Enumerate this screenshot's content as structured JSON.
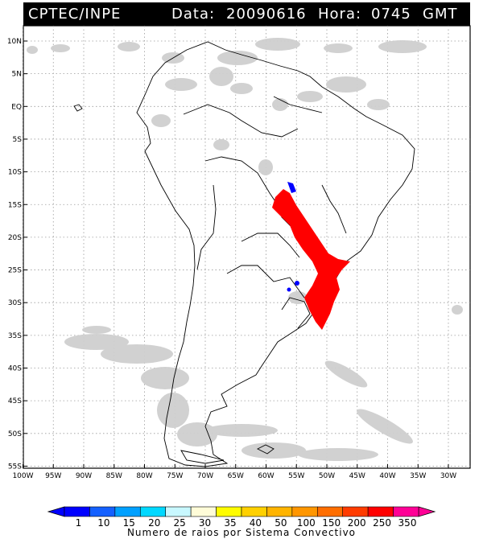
{
  "header": {
    "source": "CPTEC/INPE",
    "date_label": "Data:",
    "date": "20090616",
    "time_label": "Hora:",
    "time": "0745",
    "tz": "GMT"
  },
  "lat_ticks": [
    "10N",
    "5N",
    "EQ",
    "5S",
    "10S",
    "15S",
    "20S",
    "25S",
    "30S",
    "35S",
    "40S",
    "45S",
    "50S",
    "55S"
  ],
  "lon_ticks": [
    "100W",
    "95W",
    "90W",
    "85W",
    "80W",
    "75W",
    "70W",
    "65W",
    "60W",
    "55W",
    "50W",
    "45W",
    "40W",
    "35W",
    "30W"
  ],
  "colorbar": {
    "title": "Numero de raios por Sistema Convectivo",
    "labels": [
      "1",
      "10",
      "15",
      "20",
      "25",
      "30",
      "35",
      "40",
      "50",
      "100",
      "150",
      "200",
      "250",
      "350"
    ],
    "colors": [
      "#0000ff",
      "#1460ff",
      "#00a0ff",
      "#00d8ff",
      "#c8f8ff",
      "#fffcd8",
      "#fffc00",
      "#ffd000",
      "#ffb400",
      "#ff9600",
      "#ff6e00",
      "#ff3c00",
      "#ff0000",
      "#ff0096"
    ]
  },
  "colors": {
    "lightning_high": "#ff0000",
    "lightning_low": "#0000ff",
    "cloud": "#c8c8c8",
    "header_bg": "#000000"
  }
}
